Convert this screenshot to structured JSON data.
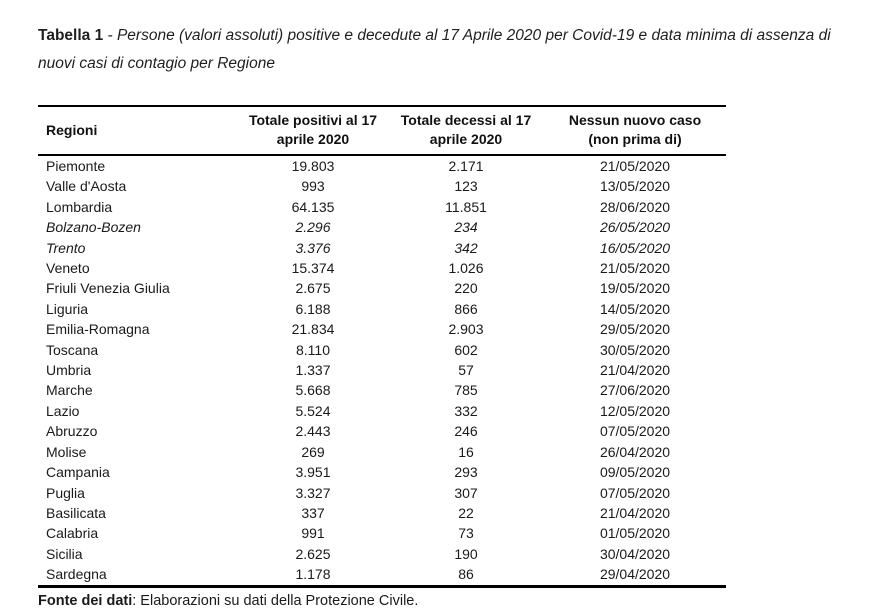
{
  "title": {
    "label": "Tabella 1",
    "rest": " - Persone (valori assoluti) positive e decedute al 17 Aprile 2020 per Covid-19 e data minima di assenza di nuovi casi di contagio per Regione"
  },
  "table": {
    "columns": [
      {
        "id": "region",
        "label": "Regioni"
      },
      {
        "id": "positives",
        "label_line1": "Totale positivi al 17",
        "label_line2": "aprile 2020"
      },
      {
        "id": "deaths",
        "label_line1": "Totale decessi al 17",
        "label_line2": "aprile 2020"
      },
      {
        "id": "no_new_case",
        "label_line1": "Nessun nuovo caso",
        "label_line2": "(non prima di)"
      }
    ],
    "rows": [
      {
        "region": "Piemonte",
        "positives": "19.803",
        "deaths": "2.171",
        "no_new_case": "21/05/2020",
        "italic": false
      },
      {
        "region": "Valle d'Aosta",
        "positives": "993",
        "deaths": "123",
        "no_new_case": "13/05/2020",
        "italic": false
      },
      {
        "region": "Lombardia",
        "positives": "64.135",
        "deaths": "11.851",
        "no_new_case": "28/06/2020",
        "italic": false
      },
      {
        "region": "Bolzano-Bozen",
        "positives": "2.296",
        "deaths": "234",
        "no_new_case": "26/05/2020",
        "italic": true
      },
      {
        "region": "Trento",
        "positives": "3.376",
        "deaths": "342",
        "no_new_case": "16/05/2020",
        "italic": true
      },
      {
        "region": "Veneto",
        "positives": "15.374",
        "deaths": "1.026",
        "no_new_case": "21/05/2020",
        "italic": false
      },
      {
        "region": "Friuli Venezia Giulia",
        "positives": "2.675",
        "deaths": "220",
        "no_new_case": "19/05/2020",
        "italic": false
      },
      {
        "region": "Liguria",
        "positives": "6.188",
        "deaths": "866",
        "no_new_case": "14/05/2020",
        "italic": false
      },
      {
        "region": "Emilia-Romagna",
        "positives": "21.834",
        "deaths": "2.903",
        "no_new_case": "29/05/2020",
        "italic": false
      },
      {
        "region": "Toscana",
        "positives": "8.110",
        "deaths": "602",
        "no_new_case": "30/05/2020",
        "italic": false
      },
      {
        "region": "Umbria",
        "positives": "1.337",
        "deaths": "57",
        "no_new_case": "21/04/2020",
        "italic": false
      },
      {
        "region": "Marche",
        "positives": "5.668",
        "deaths": "785",
        "no_new_case": "27/06/2020",
        "italic": false
      },
      {
        "region": "Lazio",
        "positives": "5.524",
        "deaths": "332",
        "no_new_case": "12/05/2020",
        "italic": false
      },
      {
        "region": "Abruzzo",
        "positives": "2.443",
        "deaths": "246",
        "no_new_case": "07/05/2020",
        "italic": false
      },
      {
        "region": "Molise",
        "positives": "269",
        "deaths": "16",
        "no_new_case": "26/04/2020",
        "italic": false
      },
      {
        "region": "Campania",
        "positives": "3.951",
        "deaths": "293",
        "no_new_case": "09/05/2020",
        "italic": false
      },
      {
        "region": "Puglia",
        "positives": "3.327",
        "deaths": "307",
        "no_new_case": "07/05/2020",
        "italic": false
      },
      {
        "region": "Basilicata",
        "positives": "337",
        "deaths": "22",
        "no_new_case": "21/04/2020",
        "italic": false
      },
      {
        "region": "Calabria",
        "positives": "991",
        "deaths": "73",
        "no_new_case": "01/05/2020",
        "italic": false
      },
      {
        "region": "Sicilia",
        "positives": "2.625",
        "deaths": "190",
        "no_new_case": "30/04/2020",
        "italic": false
      },
      {
        "region": "Sardegna",
        "positives": "1.178",
        "deaths": "86",
        "no_new_case": "29/04/2020",
        "italic": false
      }
    ]
  },
  "footer": {
    "label": "Fonte dei dati",
    "text": ": Elaborazioni su dati della Protezione Civile."
  }
}
